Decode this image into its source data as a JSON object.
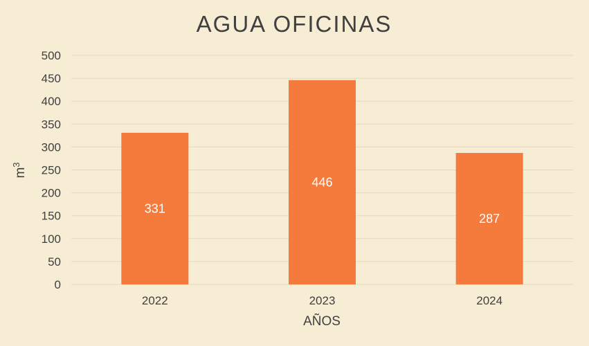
{
  "colors": {
    "background": "#f7edd4",
    "bar": "#f47b3b",
    "gridline": "#e3d9c1",
    "text": "#404040",
    "data_label": "#ffffff"
  },
  "chart_data": {
    "type": "bar",
    "title": "AGUA OFICINAS",
    "xlabel": "AÑOS",
    "ylabel": "m",
    "ylabel_superscript": "3",
    "categories": [
      "2022",
      "2023",
      "2024"
    ],
    "values": [
      331,
      446,
      287
    ],
    "data_labels": [
      "331",
      "446",
      "287"
    ],
    "ylim": [
      0,
      500
    ],
    "yticks": [
      "0",
      "50",
      "100",
      "150",
      "200",
      "250",
      "300",
      "350",
      "400",
      "450",
      "500"
    ],
    "grid": true,
    "legend": "none"
  }
}
